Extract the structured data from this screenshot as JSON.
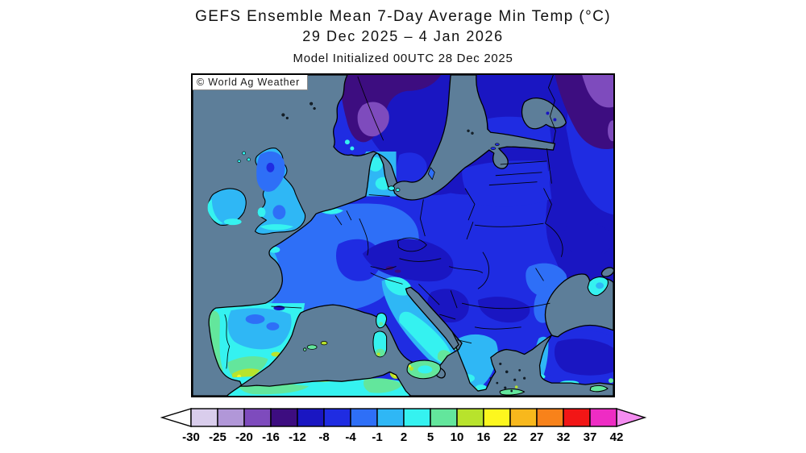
{
  "header": {
    "title": "GEFS Ensemble Mean 7-Day Average Min Temp (°C)",
    "date_range": "29 Dec 2025 – 4 Jan 2026",
    "init_line": "Model Initialized 00UTC 28 Dec 2025"
  },
  "map": {
    "watermark": "© World Ag Weather",
    "sea_color": "#5d7e99",
    "coastline_color": "#000000",
    "region": "Europe"
  },
  "colorbar": {
    "unit": "°C",
    "tick_labels": [
      "-30",
      "-25",
      "-20",
      "-16",
      "-12",
      "-8",
      "-4",
      "-1",
      "2",
      "5",
      "10",
      "16",
      "22",
      "27",
      "32",
      "37",
      "42"
    ],
    "cell_colors": [
      "#d9cdec",
      "#b197d8",
      "#7e4bbd",
      "#3d0d80",
      "#1a16c2",
      "#1f2ce2",
      "#2e6ff7",
      "#2fb7f5",
      "#35f2f0",
      "#63e69c",
      "#b8e32c",
      "#fdf71e",
      "#f8b81c",
      "#f8821a",
      "#f21616",
      "#ee2cc4"
    ],
    "left_arrow_color": "#ffffff",
    "right_arrow_color": "#f48df0"
  },
  "chart_data": {
    "type": "heatmap",
    "title": "GEFS Ensemble Mean 7-Day Average Min Temp (°C)",
    "region": "Europe",
    "legend_thresholds_c": [
      -30,
      -25,
      -20,
      -16,
      -12,
      -8,
      -4,
      -1,
      2,
      5,
      10,
      16,
      22,
      27,
      32,
      37,
      42
    ],
    "legend_position": "bottom"
  }
}
